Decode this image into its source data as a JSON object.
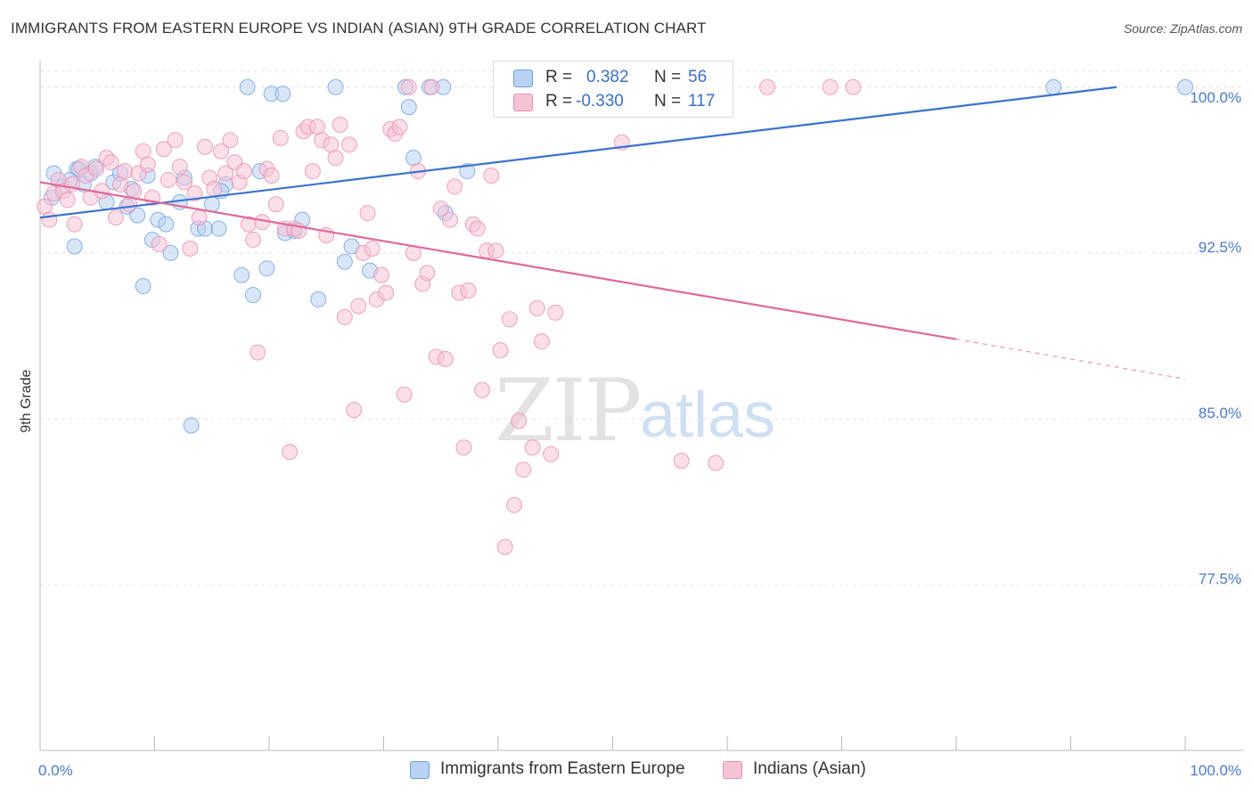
{
  "title": "IMMIGRANTS FROM EASTERN EUROPE VS INDIAN (ASIAN) 9TH GRADE CORRELATION CHART",
  "source": "Source: ZipAtlas.com",
  "watermark": {
    "zip": "ZIP",
    "atlas": "atlas"
  },
  "legend": {
    "r_label": "R =",
    "n_label": "N =",
    "series1": {
      "r": "0.382",
      "n": "56"
    },
    "series2": {
      "r": "-0.330",
      "n": "117"
    }
  },
  "colors": {
    "blue": "#6fa1e0",
    "blue_fill": "#b9d2f3",
    "blue_line": "#3a72d0",
    "pink": "#ea8fb0",
    "pink_fill": "#f6c3d6",
    "pink_line": "#e0689a"
  },
  "chart_data": {
    "type": "scatter",
    "title": "IMMIGRANTS FROM EASTERN EUROPE VS INDIAN (ASIAN) 9TH GRADE CORRELATION CHART",
    "xlabel": "",
    "ylabel": "9th Grade",
    "x_tick_labels": [
      "0.0%",
      "100.0%"
    ],
    "y_tick_labels": [
      "100.0%",
      "92.5%",
      "85.0%",
      "77.5%"
    ],
    "y_ticks": [
      100.0,
      92.5,
      85.0,
      77.5
    ],
    "xlim": [
      0,
      100
    ],
    "ylim": [
      70.0,
      101.2
    ],
    "grid": true,
    "series": [
      {
        "name": "Immigrants from Eastern Europe",
        "color": "#6fa1e0",
        "trend": {
          "x": [
            0,
            94
          ],
          "y": [
            94.1,
            100.0
          ]
        },
        "points": [
          [
            1.2,
            96.1
          ],
          [
            2.0,
            95.5
          ],
          [
            3.2,
            96.3
          ],
          [
            3.0,
            92.8
          ],
          [
            3.8,
            95.6
          ],
          [
            4.4,
            96.1
          ],
          [
            4.8,
            96.4
          ],
          [
            5.8,
            94.8
          ],
          [
            6.4,
            95.7
          ],
          [
            7.0,
            96.1
          ],
          [
            7.6,
            94.6
          ],
          [
            8.0,
            95.4
          ],
          [
            8.5,
            94.2
          ],
          [
            9.0,
            91.0
          ],
          [
            9.8,
            93.1
          ],
          [
            10.3,
            94.0
          ],
          [
            11.0,
            93.8
          ],
          [
            11.4,
            92.5
          ],
          [
            12.2,
            94.8
          ],
          [
            12.6,
            95.9
          ],
          [
            13.2,
            84.7
          ],
          [
            13.8,
            93.6
          ],
          [
            14.4,
            93.6
          ],
          [
            15.0,
            94.7
          ],
          [
            15.6,
            93.6
          ],
          [
            16.2,
            95.6
          ],
          [
            17.6,
            91.5
          ],
          [
            18.1,
            100.0
          ],
          [
            18.6,
            90.6
          ],
          [
            19.2,
            96.2
          ],
          [
            19.8,
            91.8
          ],
          [
            20.2,
            99.7
          ],
          [
            21.2,
            99.7
          ],
          [
            21.4,
            93.4
          ],
          [
            22.2,
            93.5
          ],
          [
            22.9,
            94.0
          ],
          [
            24.3,
            90.4
          ],
          [
            25.8,
            100.0
          ],
          [
            26.6,
            92.1
          ],
          [
            27.2,
            92.8
          ],
          [
            28.8,
            91.7
          ],
          [
            31.9,
            100.0
          ],
          [
            32.2,
            99.1
          ],
          [
            32.6,
            96.8
          ],
          [
            34.0,
            100.0
          ],
          [
            35.2,
            100.0
          ],
          [
            35.4,
            94.3
          ],
          [
            48.0,
            100.0
          ],
          [
            88.5,
            100.0
          ],
          [
            100.0,
            100.0
          ],
          [
            1.0,
            95.0
          ],
          [
            2.6,
            95.8
          ],
          [
            3.4,
            96.3
          ],
          [
            9.4,
            96.0
          ],
          [
            15.8,
            95.3
          ],
          [
            37.3,
            96.2
          ]
        ]
      },
      {
        "name": "Indians (Asian)",
        "color": "#ea8fb0",
        "trend": {
          "x": [
            0,
            80
          ],
          "y": [
            95.7,
            88.6
          ],
          "dash_x": [
            80,
            100
          ],
          "dash_y": [
            88.6,
            86.8
          ]
        },
        "points": [
          [
            0.4,
            94.6
          ],
          [
            0.8,
            94.0
          ],
          [
            1.2,
            95.2
          ],
          [
            1.6,
            95.8
          ],
          [
            2.0,
            95.3
          ],
          [
            2.4,
            94.9
          ],
          [
            2.8,
            95.6
          ],
          [
            3.0,
            93.8
          ],
          [
            3.6,
            96.4
          ],
          [
            4.0,
            96.0
          ],
          [
            4.4,
            95.0
          ],
          [
            4.9,
            96.3
          ],
          [
            5.4,
            95.3
          ],
          [
            5.8,
            96.8
          ],
          [
            6.2,
            96.6
          ],
          [
            6.6,
            94.1
          ],
          [
            7.0,
            95.6
          ],
          [
            7.4,
            96.2
          ],
          [
            7.8,
            94.7
          ],
          [
            8.2,
            95.3
          ],
          [
            8.6,
            96.1
          ],
          [
            9.0,
            97.1
          ],
          [
            9.4,
            96.5
          ],
          [
            9.8,
            95.0
          ],
          [
            10.4,
            92.9
          ],
          [
            10.8,
            97.2
          ],
          [
            11.2,
            95.8
          ],
          [
            11.8,
            97.6
          ],
          [
            12.2,
            96.4
          ],
          [
            12.6,
            95.7
          ],
          [
            13.1,
            92.7
          ],
          [
            13.5,
            95.2
          ],
          [
            13.9,
            94.1
          ],
          [
            14.4,
            97.3
          ],
          [
            14.8,
            95.9
          ],
          [
            15.2,
            95.4
          ],
          [
            15.8,
            97.1
          ],
          [
            16.2,
            96.1
          ],
          [
            16.6,
            97.6
          ],
          [
            17.0,
            96.6
          ],
          [
            17.4,
            95.7
          ],
          [
            17.8,
            96.2
          ],
          [
            18.2,
            93.8
          ],
          [
            18.6,
            93.1
          ],
          [
            19.0,
            88.0
          ],
          [
            19.4,
            93.9
          ],
          [
            19.8,
            96.3
          ],
          [
            20.2,
            96.0
          ],
          [
            20.6,
            94.7
          ],
          [
            21.0,
            97.7
          ],
          [
            21.4,
            93.6
          ],
          [
            21.8,
            83.5
          ],
          [
            22.2,
            93.6
          ],
          [
            22.6,
            93.5
          ],
          [
            23.0,
            98.0
          ],
          [
            23.4,
            98.2
          ],
          [
            23.8,
            96.2
          ],
          [
            24.2,
            98.2
          ],
          [
            24.6,
            97.6
          ],
          [
            25.0,
            93.3
          ],
          [
            25.4,
            97.4
          ],
          [
            25.8,
            96.8
          ],
          [
            26.2,
            98.3
          ],
          [
            26.6,
            89.6
          ],
          [
            27.0,
            97.4
          ],
          [
            27.4,
            85.4
          ],
          [
            27.8,
            90.1
          ],
          [
            28.2,
            92.5
          ],
          [
            28.6,
            94.3
          ],
          [
            29.0,
            92.7
          ],
          [
            29.4,
            90.4
          ],
          [
            29.8,
            91.5
          ],
          [
            30.2,
            90.7
          ],
          [
            30.6,
            98.1
          ],
          [
            31.0,
            97.9
          ],
          [
            31.4,
            98.2
          ],
          [
            31.8,
            86.1
          ],
          [
            32.2,
            100.0
          ],
          [
            32.6,
            92.5
          ],
          [
            33.0,
            96.2
          ],
          [
            33.4,
            91.1
          ],
          [
            33.8,
            91.6
          ],
          [
            34.2,
            100.0
          ],
          [
            34.6,
            87.8
          ],
          [
            35.0,
            94.5
          ],
          [
            35.4,
            87.7
          ],
          [
            35.8,
            94.0
          ],
          [
            36.2,
            95.5
          ],
          [
            36.6,
            90.7
          ],
          [
            37.0,
            83.7
          ],
          [
            37.4,
            90.8
          ],
          [
            37.8,
            93.8
          ],
          [
            38.2,
            93.6
          ],
          [
            38.6,
            86.3
          ],
          [
            39.0,
            92.6
          ],
          [
            39.4,
            96.0
          ],
          [
            39.8,
            92.6
          ],
          [
            40.2,
            88.1
          ],
          [
            40.6,
            79.2
          ],
          [
            41.0,
            89.5
          ],
          [
            41.4,
            81.1
          ],
          [
            41.8,
            84.9
          ],
          [
            42.2,
            82.7
          ],
          [
            42.6,
            100.0
          ],
          [
            43.0,
            83.7
          ],
          [
            43.4,
            90.0
          ],
          [
            43.8,
            88.5
          ],
          [
            44.2,
            100.0
          ],
          [
            44.6,
            83.4
          ],
          [
            45.0,
            89.8
          ],
          [
            50.8,
            97.5
          ],
          [
            56.0,
            83.1
          ],
          [
            59.0,
            83.0
          ],
          [
            63.5,
            100.0
          ],
          [
            69.0,
            100.0
          ],
          [
            71.0,
            100.0
          ],
          [
            45.4,
            100.0
          ]
        ]
      }
    ]
  },
  "bottom_legend": {
    "series1": "Immigrants from Eastern Europe",
    "series2": "Indians (Asian)"
  }
}
